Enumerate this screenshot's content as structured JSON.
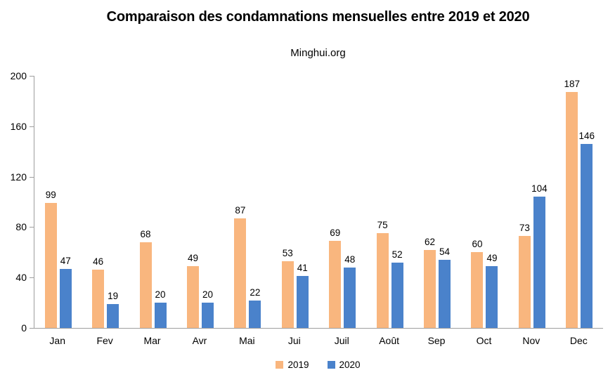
{
  "chart": {
    "title": "Comparaison des condamnations mensuelles entre 2019 et 2020",
    "subtitle": "Minghui.org"
  },
  "colors": {
    "series_2019": "#F9B67E",
    "series_2020": "#4A82CB",
    "axis_line": "#9E9E9E",
    "text": "#000000",
    "background": "#FFFFFF"
  },
  "chart_data": {
    "type": "bar",
    "title": "Comparaison des condamnations mensuelles entre 2019 et 2020",
    "subtitle": "Minghui.org",
    "categories": [
      "Jan",
      "Fev",
      "Mar",
      "Avr",
      "Mai",
      "Jui",
      "Juil",
      "Août",
      "Sep",
      "Oct",
      "Nov",
      "Dec"
    ],
    "series": [
      {
        "name": "2019",
        "color": "#F9B67E",
        "values": [
          99,
          46,
          68,
          49,
          87,
          53,
          69,
          75,
          62,
          60,
          73,
          187
        ]
      },
      {
        "name": "2020",
        "color": "#4A82CB",
        "values": [
          47,
          19,
          20,
          20,
          22,
          41,
          48,
          52,
          54,
          49,
          104,
          146
        ]
      }
    ],
    "xlabel": "",
    "ylabel": "",
    "ylim": [
      0,
      200
    ],
    "yticks": [
      0,
      40,
      80,
      120,
      160,
      200
    ],
    "grid": false,
    "value_labels": true,
    "legend_position": "bottom"
  }
}
